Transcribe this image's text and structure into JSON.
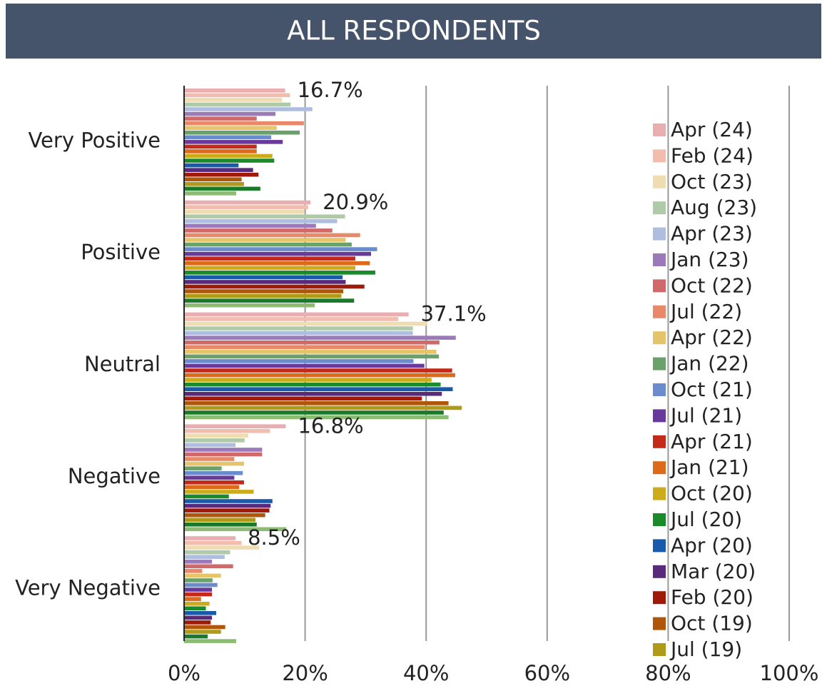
{
  "chart_data": {
    "type": "hbar",
    "title": "ALL RESPONDENTS",
    "categories": [
      "Very Positive",
      "Positive",
      "Neutral",
      "Negative",
      "Very Negative"
    ],
    "xlim": [
      0,
      100
    ],
    "xticks": [
      {
        "value": 0,
        "label": "0%"
      },
      {
        "value": 20,
        "label": "20%"
      },
      {
        "value": 40,
        "label": "40%"
      },
      {
        "value": 60,
        "label": "60%"
      },
      {
        "value": 80,
        "label": "80%"
      },
      {
        "value": 100,
        "label": "100%"
      }
    ],
    "grid": true,
    "legend": "right",
    "series": [
      {
        "name": "Apr (24)",
        "color": "#e8aeb0",
        "values": [
          16.7,
          20.9,
          37.1,
          16.8,
          8.5
        ],
        "value_labels": [
          "16.7%",
          "20.9%",
          "37.1%",
          "16.8%",
          "8.5%"
        ]
      },
      {
        "name": "Feb (24)",
        "color": "#f2bcae",
        "values": [
          17.5,
          20.5,
          35.4,
          14.2,
          9.5
        ]
      },
      {
        "name": "Oct (23)",
        "color": "#efdcb0",
        "values": [
          16.2,
          19.8,
          40.2,
          10.6,
          12.4
        ]
      },
      {
        "name": "Aug (23)",
        "color": "#aecaa8",
        "values": [
          17.6,
          26.6,
          37.8,
          10,
          7.6
        ]
      },
      {
        "name": "Apr (23)",
        "color": "#aebde0",
        "values": [
          21.2,
          25.3,
          37.8,
          8.5,
          6.7
        ]
      },
      {
        "name": "Jan (23)",
        "color": "#9a7ab8",
        "values": [
          15.1,
          21.8,
          44.9,
          12.9,
          4.6
        ]
      },
      {
        "name": "Oct (22)",
        "color": "#d06a6a",
        "values": [
          12,
          24.5,
          42.2,
          12.9,
          8.1
        ]
      },
      {
        "name": "Jul (22)",
        "color": "#e88a6a",
        "values": [
          19.8,
          29.1,
          39.8,
          8.3,
          3
        ]
      },
      {
        "name": "Apr (22)",
        "color": "#e6c46a",
        "values": [
          15.3,
          26.7,
          41.7,
          9.9,
          6.1
        ]
      },
      {
        "name": "Jan (22)",
        "color": "#6aa06a",
        "values": [
          19.1,
          27.7,
          42.1,
          6.2,
          4.7
        ]
      },
      {
        "name": "Oct (21)",
        "color": "#6a8ccc",
        "values": [
          14.4,
          31.9,
          37.9,
          9.7,
          5.5
        ]
      },
      {
        "name": "Jul (21)",
        "color": "#6a3a9a",
        "values": [
          16.3,
          30.9,
          39.7,
          8.3,
          4.6
        ]
      },
      {
        "name": "Apr (21)",
        "color": "#c42a1a",
        "values": [
          12,
          28.3,
          44.3,
          9.9,
          4.6
        ]
      },
      {
        "name": "Jan (21)",
        "color": "#dc6a1a",
        "values": [
          12,
          30.7,
          44.8,
          9.1,
          2.8
        ]
      },
      {
        "name": "Oct (20)",
        "color": "#ccac1a",
        "values": [
          14.6,
          28.3,
          40.9,
          11.5,
          4.2
        ]
      },
      {
        "name": "Jul (20)",
        "color": "#1a8a2a",
        "values": [
          14.9,
          31.6,
          42.4,
          7.4,
          3.6
        ]
      },
      {
        "name": "Apr (20)",
        "color": "#1a5aaa",
        "values": [
          9,
          26.2,
          44.4,
          14.6,
          5.3
        ]
      },
      {
        "name": "Mar (20)",
        "color": "#5a2a7a",
        "values": [
          11.4,
          26.7,
          42.6,
          14.3,
          4.6
        ]
      },
      {
        "name": "Feb (20)",
        "color": "#a01a0a",
        "values": [
          12.3,
          29.8,
          39.3,
          14.1,
          4.4
        ]
      },
      {
        "name": "Oct (19)",
        "color": "#b0560a",
        "values": [
          9.5,
          26.3,
          43.7,
          13.4,
          6.8
        ]
      },
      {
        "name": "Jul (19)",
        "color": "#b09a1a",
        "values": [
          9.9,
          26,
          45.9,
          11.8,
          6.1
        ]
      },
      {
        "color": "#1a7a2a",
        "values": [
          12.6,
          28.1,
          42.9,
          12,
          3.9
        ]
      },
      {
        "color": "#8cbc74",
        "values": [
          8.6,
          21.6,
          43.7,
          16.9,
          8.6
        ]
      }
    ]
  }
}
